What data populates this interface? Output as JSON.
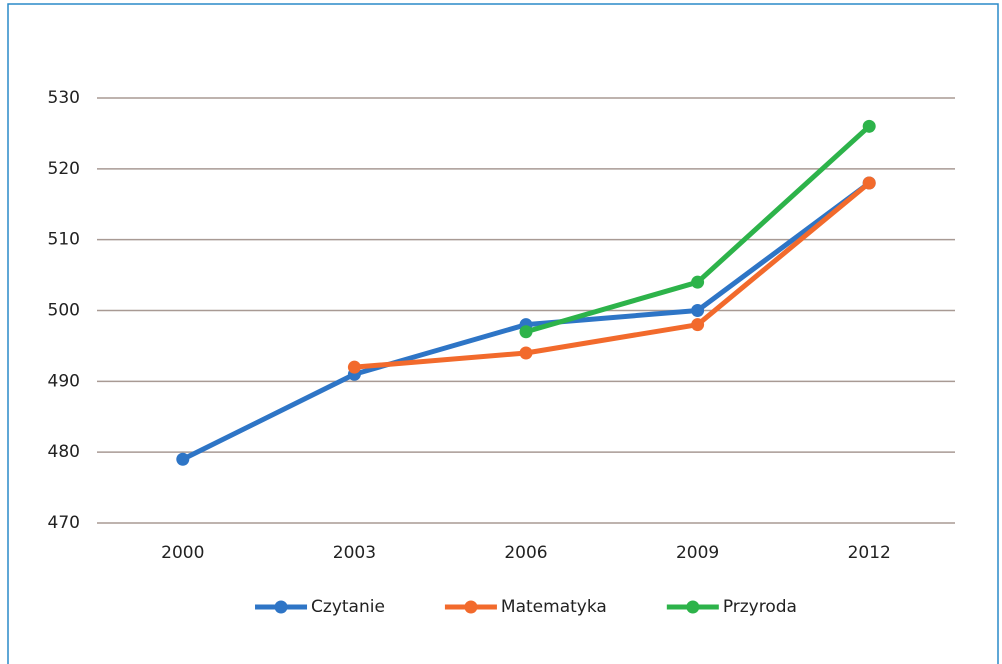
{
  "chart_data": {
    "type": "line",
    "categories": [
      "2000",
      "2003",
      "2006",
      "2009",
      "2012"
    ],
    "series": [
      {
        "name": "Czytanie",
        "color": "#2e75c6",
        "values": [
          479,
          491,
          498,
          500,
          518
        ]
      },
      {
        "name": "Matematyka",
        "color": "#f26a2c",
        "values": [
          null,
          492,
          494,
          498,
          518
        ]
      },
      {
        "name": "Przyroda",
        "color": "#2db34a",
        "values": [
          null,
          null,
          497,
          504,
          526
        ]
      }
    ],
    "ylim": [
      470,
      530
    ],
    "yticks": [
      470,
      480,
      490,
      500,
      510,
      520,
      530
    ],
    "grid": true,
    "legend": "bottom"
  }
}
